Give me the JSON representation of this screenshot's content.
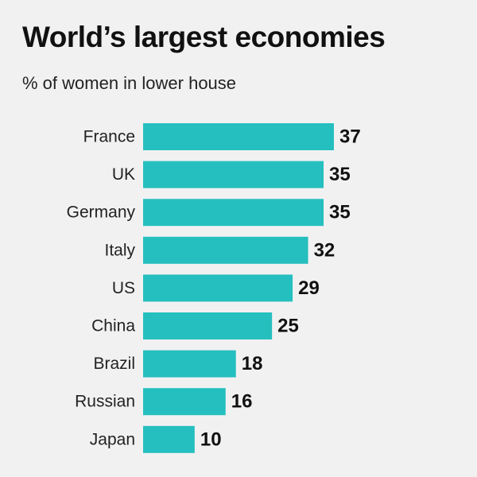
{
  "chart_data": {
    "type": "bar",
    "orientation": "horizontal",
    "title": "World’s largest economies",
    "subtitle": "% of women in lower house",
    "categories": [
      "France",
      "UK",
      "Germany",
      "Italy",
      "US",
      "China",
      "Brazil",
      "Russian",
      "Japan"
    ],
    "values": [
      37,
      35,
      35,
      32,
      29,
      25,
      18,
      16,
      10
    ],
    "xlim": [
      0,
      37
    ],
    "grid": false,
    "legend": "none",
    "bar_color": "#26bfbf",
    "background": "#f2f1f2"
  }
}
